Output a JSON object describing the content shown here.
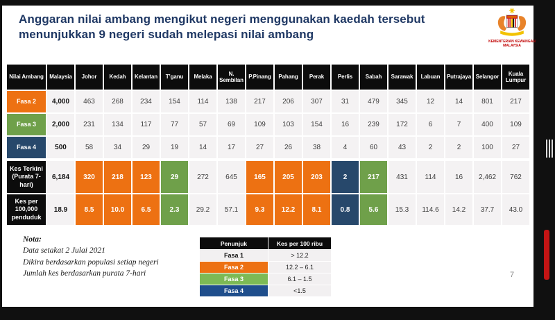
{
  "title": {
    "line1": "Anggaran nilai ambang mengikut negeri menggunakan kaedah tersebut",
    "line2": "menunjukkan 9 negeri sudah melepasi nilai ambang"
  },
  "logo": {
    "caption_line1": "KEMENTERIAN KEWANGAN",
    "caption_line2": "MALAYSIA"
  },
  "table": {
    "header_label": "Nilai Ambang",
    "columns": [
      "Malaysia",
      "Johor",
      "Kedah",
      "Kelantan",
      "T’ganu",
      "Melaka",
      "N. Sembilan",
      "P.Pinang",
      "Pahang",
      "Perak",
      "Perlis",
      "Sabah",
      "Sarawak",
      "Labuan",
      "Putrajaya",
      "Selangor",
      "Kuala Lumpur"
    ],
    "rows": [
      {
        "label": "Fasa 2",
        "label_style": "orange",
        "values": [
          "4,000",
          "463",
          "268",
          "234",
          "154",
          "114",
          "138",
          "217",
          "206",
          "307",
          "31",
          "479",
          "345",
          "12",
          "14",
          "801",
          "217"
        ],
        "cell_styles": [
          "m",
          "",
          "",
          "",
          "",
          "",
          "",
          "",
          "",
          "",
          "",
          "",
          "",
          "",
          "",
          "",
          ""
        ]
      },
      {
        "label": "Fasa 3",
        "label_style": "green",
        "values": [
          "2,000",
          "231",
          "134",
          "117",
          "77",
          "57",
          "69",
          "109",
          "103",
          "154",
          "16",
          "239",
          "172",
          "6",
          "7",
          "400",
          "109"
        ],
        "cell_styles": [
          "m",
          "",
          "",
          "",
          "",
          "",
          "",
          "",
          "",
          "",
          "",
          "",
          "",
          "",
          "",
          "",
          ""
        ]
      },
      {
        "label": "Fasa 4",
        "label_style": "navy",
        "values": [
          "500",
          "58",
          "34",
          "29",
          "19",
          "14",
          "17",
          "27",
          "26",
          "38",
          "4",
          "60",
          "43",
          "2",
          "2",
          "100",
          "27"
        ],
        "cell_styles": [
          "m",
          "",
          "",
          "",
          "",
          "",
          "",
          "",
          "",
          "",
          "",
          "",
          "",
          "",
          "",
          "",
          ""
        ]
      },
      {
        "label": "Kes Terkini (Purata 7-hari)",
        "label_style": "black",
        "gap_before": true,
        "values": [
          "6,184",
          "320",
          "218",
          "123",
          "29",
          "272",
          "645",
          "165",
          "205",
          "203",
          "2",
          "217",
          "431",
          "114",
          "16",
          "2,462",
          "762"
        ],
        "cell_styles": [
          "m",
          "o",
          "o",
          "o",
          "g",
          "",
          "",
          "o",
          "o",
          "o",
          "b",
          "g",
          "",
          "",
          "",
          "",
          ""
        ]
      },
      {
        "label": "Kes per 100,000 penduduk",
        "label_style": "black",
        "values": [
          "18.9",
          "8.5",
          "10.0",
          "6.5",
          "2.3",
          "29.2",
          "57.1",
          "9.3",
          "12.2",
          "8.1",
          "0.8",
          "5.6",
          "15.3",
          "114.6",
          "14.2",
          "37.7",
          "43.0"
        ],
        "cell_styles": [
          "m",
          "o",
          "o",
          "o",
          "g",
          "",
          "",
          "o",
          "o",
          "o",
          "b",
          "g",
          "",
          "",
          "",
          "",
          ""
        ]
      }
    ]
  },
  "note": {
    "heading": "Nota:",
    "lines": [
      "Data setakat 2 Julai 2021",
      "Dikira berdasarkan populasi setiap negeri",
      "Jumlah kes berdasarkan purata 7-hari"
    ]
  },
  "legend": {
    "headers": [
      "Penunjuk",
      "Kes per 100 ribu"
    ],
    "rows": [
      {
        "label": "Fasa 1",
        "style": "plain",
        "value": "> 12.2"
      },
      {
        "label": "Fasa 2",
        "style": "orange",
        "value": "12.2 – 6.1"
      },
      {
        "label": "Fasa 3",
        "style": "green",
        "value": "6.1 – 1.5"
      },
      {
        "label": "Fasa 4",
        "style": "navy",
        "value": "<1.5"
      }
    ]
  },
  "page_number": "7",
  "colors": {
    "orange": "#ED7112",
    "green": "#6FA04A",
    "navy": "#27486B",
    "legend_green": "#7CBA55",
    "legend_navy": "#1F4E8C",
    "title_text": "#1F3864"
  }
}
